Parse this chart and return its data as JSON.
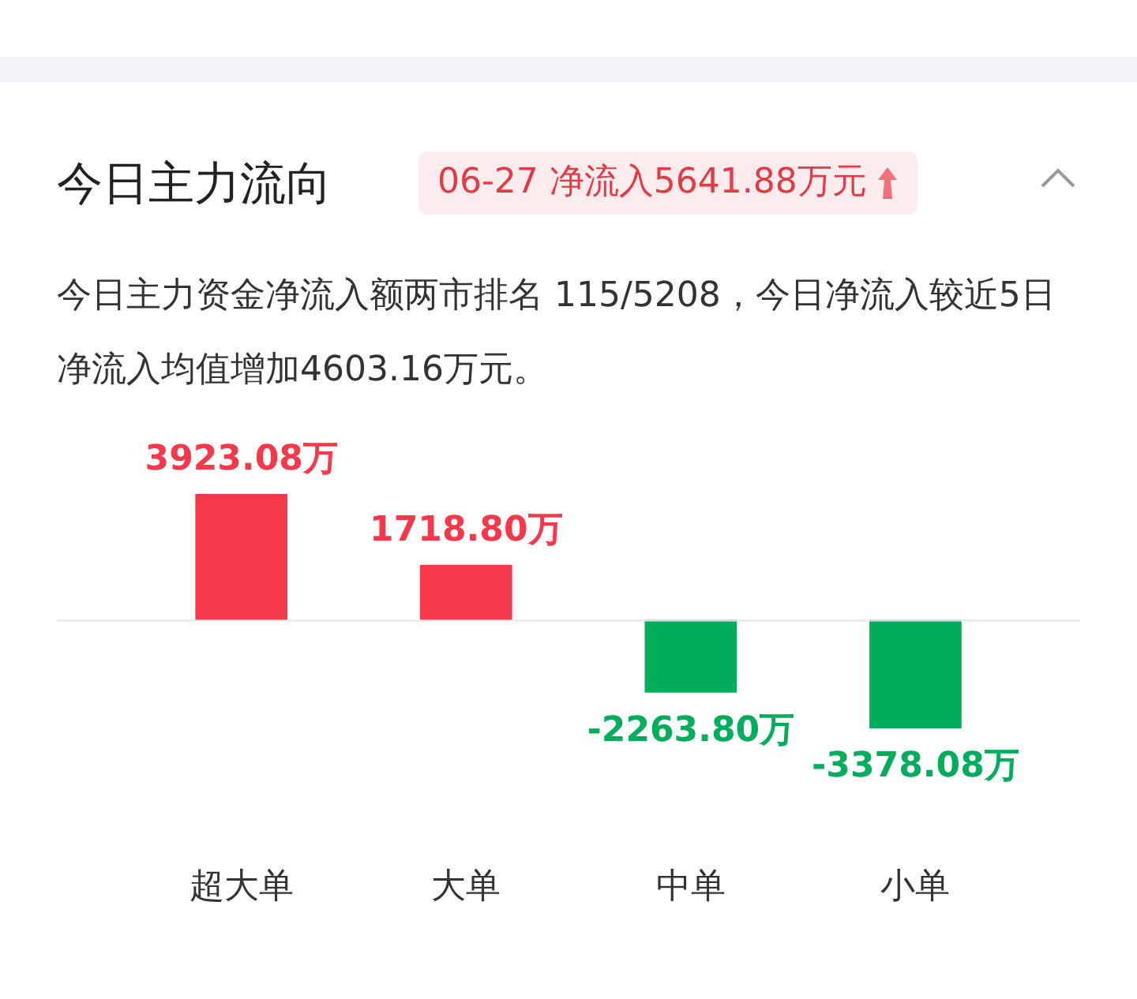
{
  "chart_data": {
    "type": "bar",
    "title": "今日主力流向",
    "subtitle": "06-27 净流入5641.88万元",
    "annotations": [
      "今日主力资金净流入额两市排名 115/5208，今日净流入较近5日净流入均值增加4603.16万元。"
    ],
    "categories": [
      "超大单",
      "大单",
      "中单",
      "小单"
    ],
    "values": [
      3923.08,
      1718.8,
      -2263.8,
      -3378.08
    ],
    "colors": [
      "#f5394a",
      "#f5394a",
      "#00ad5b",
      "#00ad5b"
    ],
    "value_labels": [
      "3923.08万",
      "1718.80万",
      "-2263.80万",
      "-3378.08万"
    ],
    "legend": false,
    "grid": false
  }
}
